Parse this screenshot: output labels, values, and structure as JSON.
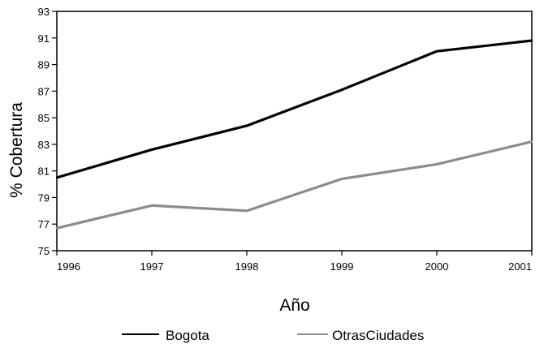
{
  "chart_data": {
    "type": "line",
    "xlabel": "Año",
    "ylabel": "% Cobertura",
    "x": [
      1996,
      1997,
      1998,
      1999,
      2000,
      2001
    ],
    "xlim": [
      1996,
      2001
    ],
    "ylim": [
      75,
      93
    ],
    "yticks": [
      75,
      77,
      79,
      81,
      83,
      85,
      87,
      89,
      91,
      93
    ],
    "grid": false,
    "legend_position": "bottom",
    "series": [
      {
        "name": "Bogota",
        "color": "#000000",
        "values": [
          80.5,
          82.6,
          84.4,
          87.1,
          90.0,
          90.8
        ]
      },
      {
        "name": "OtrasCiudades",
        "color": "#8c8c8c",
        "values": [
          76.7,
          78.4,
          78.0,
          80.4,
          81.5,
          83.2
        ]
      }
    ]
  }
}
